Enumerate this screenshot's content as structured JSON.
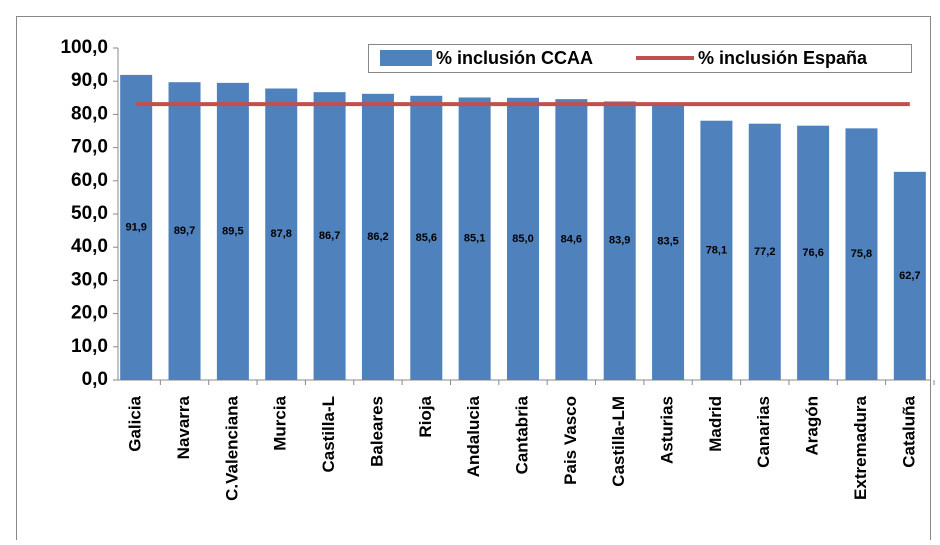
{
  "chart_data": {
    "type": "bar",
    "categories": [
      "Galicia",
      "Navarra",
      "C.Valenciana",
      "Murcia",
      "Castilla-L",
      "Baleares",
      "Rioja",
      "Andalucia",
      "Cantabria",
      "Pais Vasco",
      "Castilla-LM",
      "Asturias",
      "Madrid",
      "Canarias",
      "Aragón",
      "Extremadura",
      "Cataluña"
    ],
    "series": [
      {
        "name": "% inclusión CCAA",
        "type": "bar",
        "color": "#4f81bd",
        "values": [
          91.9,
          89.7,
          89.5,
          87.8,
          86.7,
          86.2,
          85.6,
          85.1,
          85.0,
          84.6,
          83.9,
          83.5,
          78.1,
          77.2,
          76.6,
          75.8,
          62.7
        ],
        "value_labels": [
          "91,9",
          "89,7",
          "89,5",
          "87,8",
          "86,7",
          "86,2",
          "85,6",
          "85,1",
          "85,0",
          "84,6",
          "83,9",
          "83,5",
          "78,1",
          "77,2",
          "76,6",
          "75,8",
          "62,7"
        ]
      },
      {
        "name": "% inclusión España",
        "type": "line",
        "color": "#c0504d",
        "values": [
          83.1,
          83.1,
          83.1,
          83.1,
          83.1,
          83.1,
          83.1,
          83.1,
          83.1,
          83.1,
          83.1,
          83.1,
          83.1,
          83.1,
          83.1,
          83.1,
          83.1
        ]
      }
    ],
    "ylim": [
      0,
      100
    ],
    "yticks": [
      {
        "value": 0,
        "label": "0,0"
      },
      {
        "value": 10,
        "label": "10,0"
      },
      {
        "value": 20,
        "label": "20,0"
      },
      {
        "value": 30,
        "label": "30,0"
      },
      {
        "value": 40,
        "label": "40,0"
      },
      {
        "value": 50,
        "label": "50,0"
      },
      {
        "value": 60,
        "label": "60,0"
      },
      {
        "value": 70,
        "label": "70,0"
      },
      {
        "value": 80,
        "label": "80,0"
      },
      {
        "value": 90,
        "label": "90,0"
      },
      {
        "value": 100,
        "label": "100,0"
      }
    ],
    "legend": "top-right"
  }
}
